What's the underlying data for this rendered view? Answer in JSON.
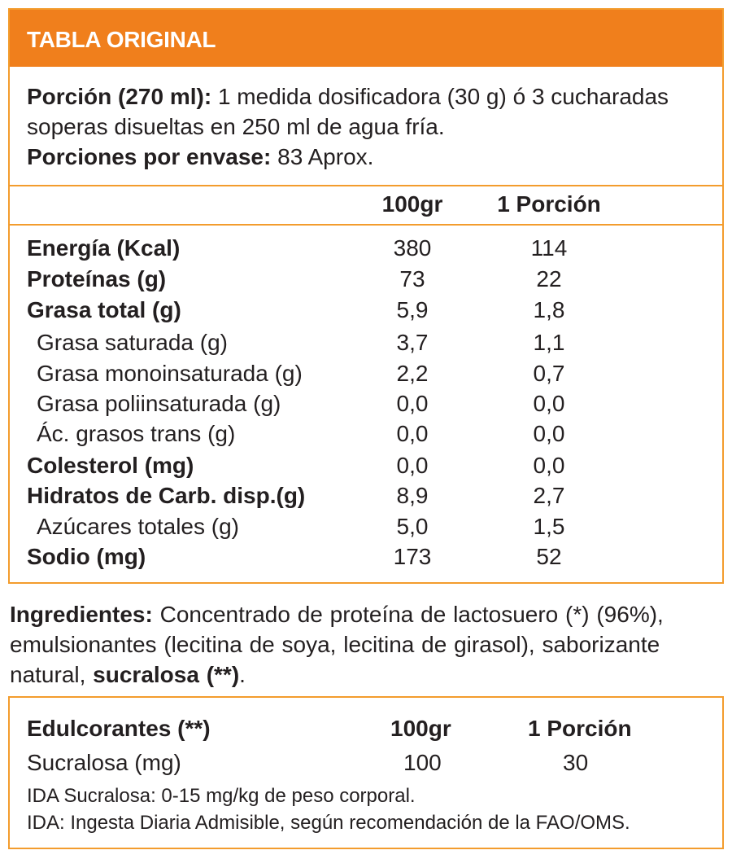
{
  "header": {
    "title": "TABLA ORIGINAL"
  },
  "serving": {
    "label": "Porción (270 ml):",
    "text": " 1 medida dosificadora (30 g) ó 3 cucharadas soperas disueltas en 250 ml de agua fría.",
    "per_container_label": "Porciones por envase:",
    "per_container_value": " 83 Aprox."
  },
  "table": {
    "col1": "100gr",
    "col2": "1 Porción",
    "rows": [
      {
        "label": "Energía (Kcal)",
        "v1": "380",
        "v2": "114"
      },
      {
        "label": "Proteínas (g)",
        "v1": "73",
        "v2": "22"
      },
      {
        "label": "Grasa total (g)",
        "v1": "5,9",
        "v2": "1,8"
      },
      {
        "label": "Grasa saturada (g)",
        "v1": "3,7",
        "v2": "1,1"
      },
      {
        "label": "Grasa monoinsaturada (g)",
        "v1": "2,2",
        "v2": "0,7"
      },
      {
        "label": "Grasa poliinsaturada (g)",
        "v1": "0,0",
        "v2": "0,0"
      },
      {
        "label": "Ác. grasos trans (g)",
        "v1": "0,0",
        "v2": "0,0"
      },
      {
        "label": "Colesterol (mg)",
        "v1": "0,0",
        "v2": "0,0"
      },
      {
        "label": "Hidratos de Carb. disp.(g)",
        "v1": "8,9",
        "v2": "2,7"
      },
      {
        "label": "Azúcares totales (g)",
        "v1": "5,0",
        "v2": "1,5"
      },
      {
        "label": "Sodio (mg)",
        "v1": "173",
        "v2": "52"
      }
    ]
  },
  "ingredients": {
    "label": "Ingredientes:",
    "text": " Concentrado de proteína de lactosuero (*) (96%), emulsionantes (lecitina de soya, lecitina de girasol), saborizante natural, ",
    "bold_tail": "sucralosa (**)",
    "end": "."
  },
  "sweeteners": {
    "title": "Edulcorantes (**)",
    "col1": "100gr",
    "col2": "1 Porción",
    "row_label": "Sucralosa (mg)",
    "row_v1": "100",
    "row_v2": "30",
    "note1": "IDA Sucralosa: 0-15 mg/kg de peso corporal.",
    "note2": "IDA: Ingesta Diaria Admisible, según recomendación de la FAO/OMS."
  },
  "colors": {
    "accent": "#f07f1c",
    "border": "#f39c2d",
    "text": "#231f20"
  }
}
